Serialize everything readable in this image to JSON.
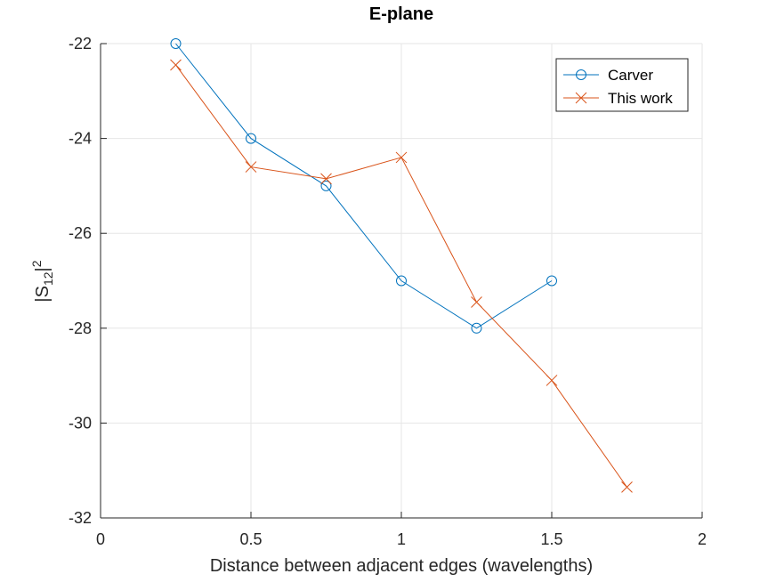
{
  "chart_data": {
    "type": "line",
    "title": "E-plane",
    "xlabel": "Distance between adjacent edges (wavelengths)",
    "ylabel": {
      "base": "|S",
      "subscript": "12",
      "after": "|",
      "superscript": "2"
    },
    "xlim": [
      0,
      2
    ],
    "ylim": [
      -32,
      -22
    ],
    "xticks": [
      0,
      0.5,
      1,
      1.5,
      2
    ],
    "xtick_labels": [
      "0",
      "0.5",
      "1",
      "1.5",
      "2"
    ],
    "yticks": [
      -32,
      -30,
      -28,
      -26,
      -24,
      -22
    ],
    "ytick_labels": [
      "-32",
      "-30",
      "-28",
      "-26",
      "-24",
      "-22"
    ],
    "grid": true,
    "legend_position": "top-right",
    "series": [
      {
        "name": "Carver",
        "color": "#0072BD",
        "marker": "circle",
        "x": [
          0.25,
          0.5,
          0.75,
          1.0,
          1.25,
          1.5
        ],
        "y": [
          -22.0,
          -24.0,
          -25.0,
          -27.0,
          -28.0,
          -27.0
        ]
      },
      {
        "name": "This work",
        "color": "#D95319",
        "marker": "x",
        "x": [
          0.25,
          0.5,
          0.75,
          1.0,
          1.25,
          1.5,
          1.75
        ],
        "y": [
          -22.45,
          -24.6,
          -24.85,
          -24.4,
          -27.45,
          -29.1,
          -31.35
        ]
      }
    ]
  }
}
